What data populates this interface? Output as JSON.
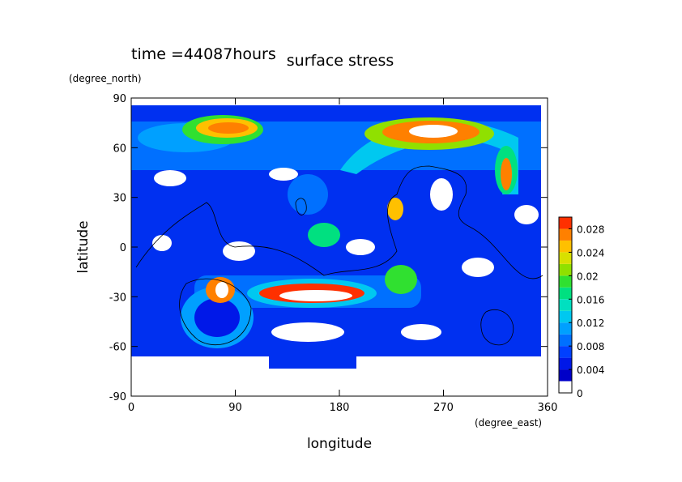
{
  "chart_data": {
    "type": "contour",
    "title": "surface stress",
    "subtitle": "time =44087hours",
    "x_label": "longitude",
    "x_unit": "(degree_east)",
    "y_label": "latitude",
    "y_unit": "(degree_north)",
    "xlim": [
      0,
      360
    ],
    "xticks": [
      0,
      90,
      180,
      270,
      360
    ],
    "ylim": [
      -90,
      90
    ],
    "yticks": [
      90,
      60,
      30,
      0,
      -30,
      -60,
      -90
    ],
    "clim": [
      0,
      0.03
    ],
    "cticks": [
      0,
      0.004,
      0.008,
      0.012,
      0.016,
      0.02,
      0.024,
      0.028
    ],
    "colors": [
      "#ffffff",
      "#0000c8",
      "#0018e8",
      "#0040ff",
      "#0070ff",
      "#00a0ff",
      "#00c8f0",
      "#00e0c0",
      "#00e080",
      "#30e030",
      "#90e000",
      "#d8e000",
      "#ffc000",
      "#ff8000",
      "#ff3000"
    ]
  }
}
